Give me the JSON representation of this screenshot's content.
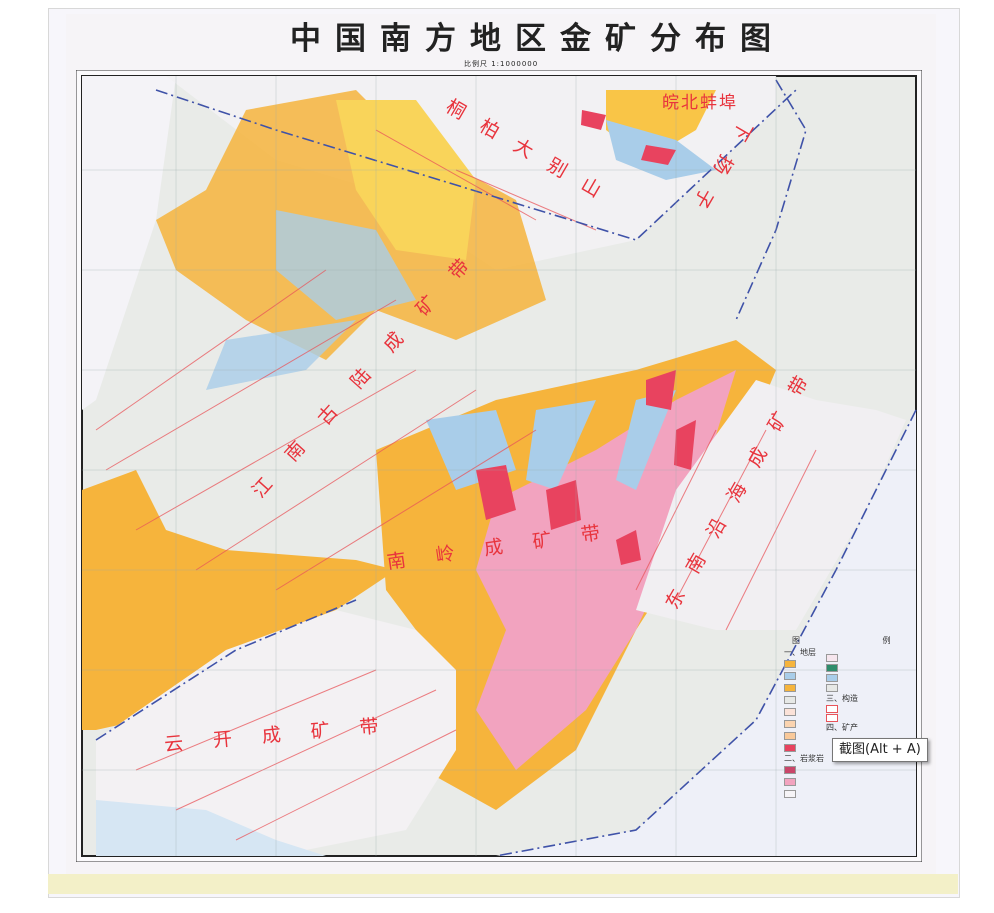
{
  "map": {
    "title": "中国南方地区金矿分布图",
    "scale": "比例尺 1:1000000",
    "region_labels": [
      "皖北蚌埠",
      "桐柏大别山",
      "下扬子",
      "江南古陆成矿带",
      "南岭成矿带",
      "东南沿海成矿带",
      "云开成矿带"
    ],
    "colors": {
      "orange": "#f6b43c",
      "yellow": "#f9d45a",
      "blue": "#a9cde9",
      "pink": "#f2a3bf",
      "red": "#e8435f",
      "grey": "#e6e8e6",
      "fault": "#e8545a",
      "boundary": "#3f52a8"
    }
  },
  "legend": {
    "title": "图 例",
    "sections": [
      "一、地层",
      "二、岩浆岩",
      "三、构造",
      "四、矿产"
    ]
  },
  "tooltip": {
    "text": "截图(Alt + A)"
  }
}
